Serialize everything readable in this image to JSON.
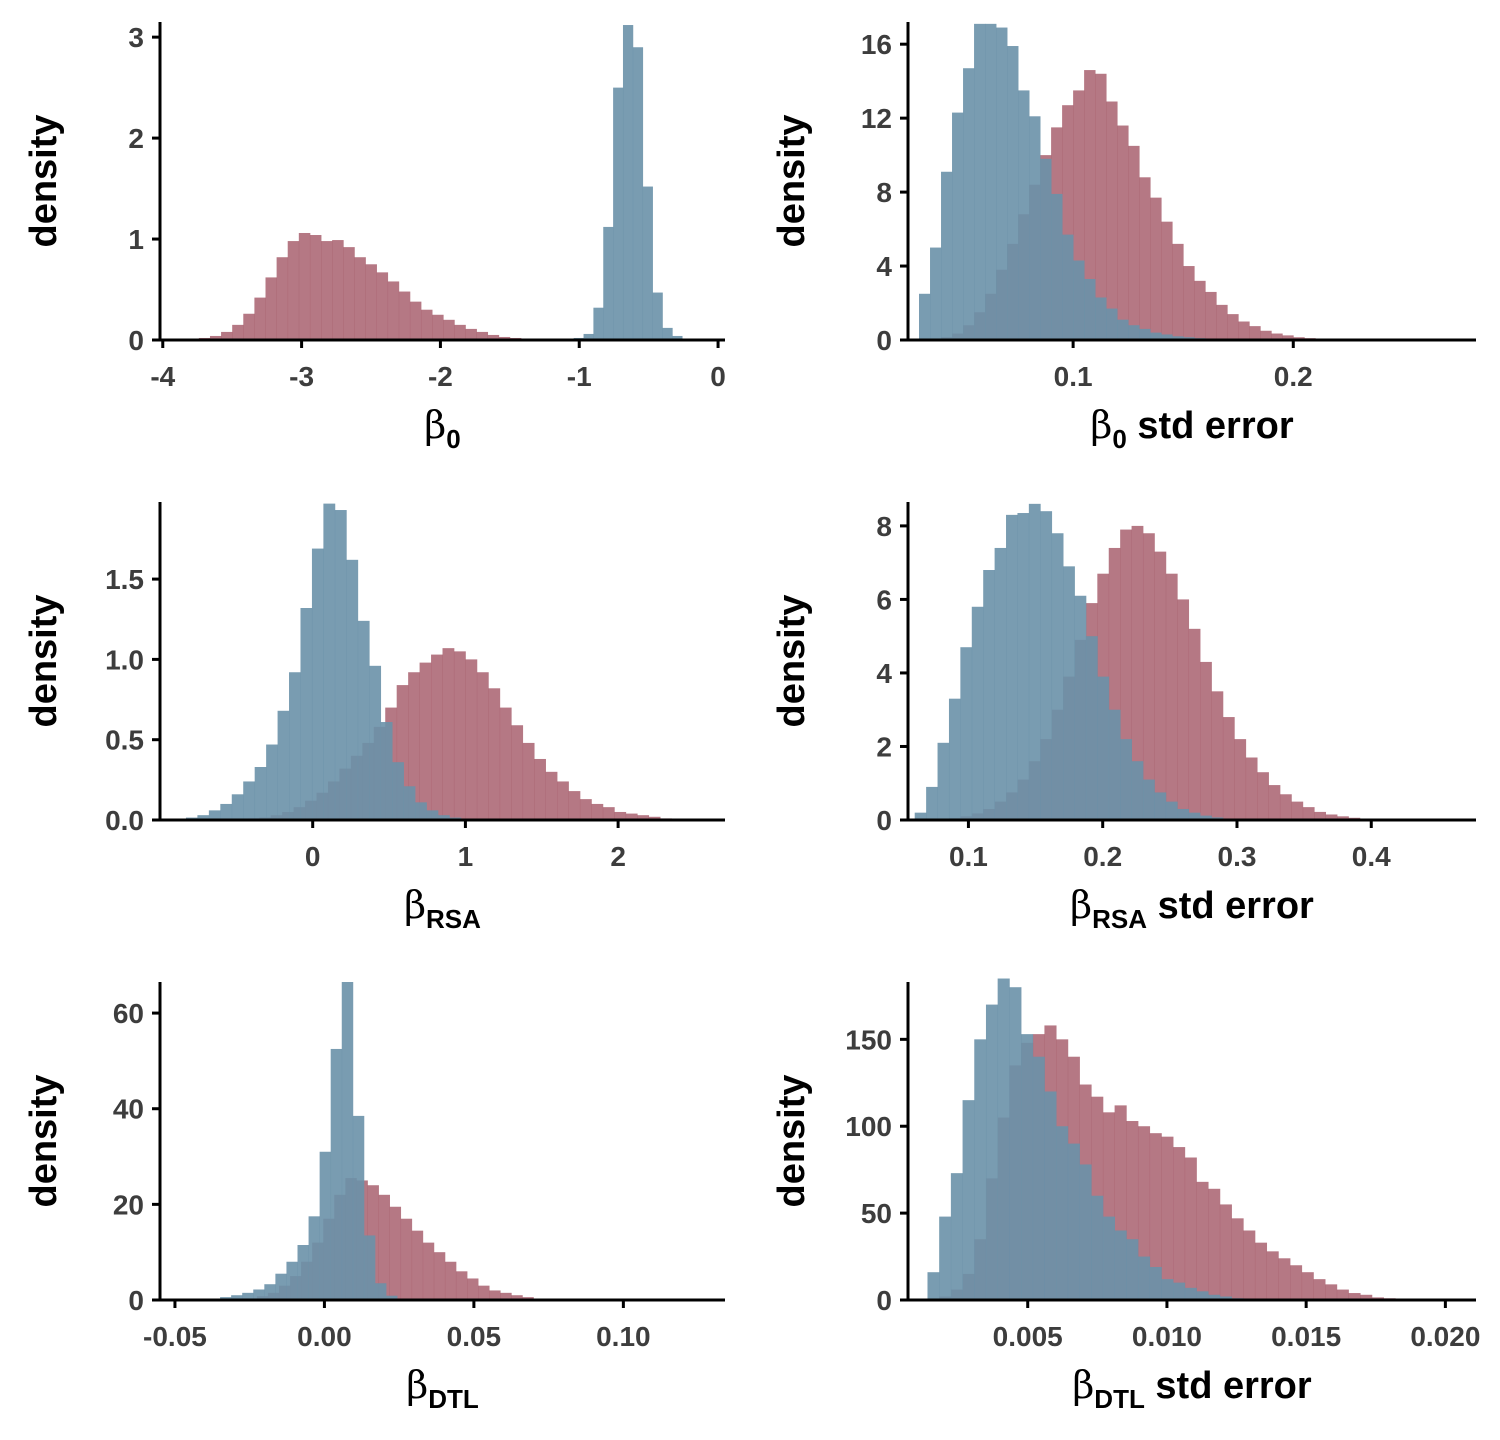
{
  "colors": {
    "red": "#A8606F",
    "blue": "#6A91A9",
    "red_opacity": 0.85,
    "blue_opacity": 0.9
  },
  "chart_data": [
    {
      "type": "histogram",
      "xlabel": {
        "symbol": "β",
        "sub": "0",
        "suffix": ""
      },
      "ylabel": "density",
      "xlim": [
        -4.02,
        0.05
      ],
      "ylim": [
        0,
        3.15
      ],
      "xticks": [
        {
          "v": -4,
          "label": "-4"
        },
        {
          "v": -3,
          "label": "-3"
        },
        {
          "v": -2,
          "label": "-2"
        },
        {
          "v": -1,
          "label": "-1"
        },
        {
          "v": 0,
          "label": "0"
        }
      ],
      "yticks": [
        {
          "v": 0,
          "label": "0"
        },
        {
          "v": 1,
          "label": "1"
        },
        {
          "v": 2,
          "label": "2"
        },
        {
          "v": 3,
          "label": "3"
        }
      ],
      "series": [
        {
          "color": "red",
          "x0": -3.98,
          "bin": 0.08,
          "values": [
            0.003,
            0.005,
            0.01,
            0.02,
            0.04,
            0.08,
            0.15,
            0.26,
            0.42,
            0.62,
            0.82,
            0.98,
            1.06,
            1.04,
            0.98,
            0.99,
            0.92,
            0.82,
            0.75,
            0.67,
            0.58,
            0.48,
            0.38,
            0.3,
            0.25,
            0.2,
            0.15,
            0.11,
            0.08,
            0.05,
            0.03,
            0.02,
            0.01,
            0.005
          ]
        },
        {
          "color": "blue",
          "x0": -1.04,
          "bin": 0.071,
          "values": [
            0.02,
            0.06,
            0.32,
            1.12,
            2.5,
            3.12,
            2.9,
            1.52,
            0.47,
            0.12,
            0.04,
            0.01
          ]
        }
      ]
    },
    {
      "type": "histogram",
      "xlabel": {
        "symbol": "β",
        "sub": "0",
        "suffix": " std error"
      },
      "ylabel": "density",
      "xlim": [
        0.025,
        0.283
      ],
      "ylim": [
        0,
        17.2
      ],
      "xticks": [
        {
          "v": 0.1,
          "label": "0.1"
        },
        {
          "v": 0.2,
          "label": "0.2"
        }
      ],
      "yticks": [
        {
          "v": 0,
          "label": "0"
        },
        {
          "v": 4,
          "label": "4"
        },
        {
          "v": 8,
          "label": "8"
        },
        {
          "v": 12,
          "label": "12"
        },
        {
          "v": 16,
          "label": "16"
        }
      ],
      "series": [
        {
          "color": "red",
          "x0": 0.03,
          "bin": 0.005,
          "values": [
            0.02,
            0.06,
            0.15,
            0.35,
            0.8,
            1.5,
            2.5,
            3.8,
            5.2,
            6.8,
            8.4,
            10.0,
            11.5,
            12.7,
            13.5,
            14.6,
            14.4,
            12.9,
            11.6,
            10.5,
            8.8,
            7.7,
            6.4,
            5.2,
            4.0,
            3.2,
            2.6,
            1.9,
            1.4,
            1.0,
            0.75,
            0.5,
            0.35,
            0.25,
            0.15,
            0.1,
            0.06,
            0.03,
            0.02
          ]
        },
        {
          "color": "blue",
          "x0": 0.03,
          "bin": 0.005,
          "values": [
            2.5,
            5.0,
            9.1,
            12.3,
            14.7,
            17.1,
            17.1,
            16.9,
            15.9,
            13.5,
            12.1,
            9.8,
            7.9,
            5.7,
            4.3,
            3.3,
            2.3,
            1.7,
            1.1,
            0.8,
            0.6,
            0.4,
            0.3,
            0.2,
            0.15,
            0.1,
            0.06,
            0.04,
            0.02
          ]
        }
      ]
    },
    {
      "type": "histogram",
      "xlabel": {
        "symbol": "β",
        "sub": "RSA",
        "suffix": ""
      },
      "ylabel": "density",
      "xlim": [
        -1.0,
        2.7
      ],
      "ylim": [
        0,
        1.98
      ],
      "xticks": [
        {
          "v": 0,
          "label": "0"
        },
        {
          "v": 1,
          "label": "1"
        },
        {
          "v": 2,
          "label": "2"
        }
      ],
      "yticks": [
        {
          "v": 0,
          "label": "0.0"
        },
        {
          "v": 0.5,
          "label": "0.5"
        },
        {
          "v": 1.0,
          "label": "1.0"
        },
        {
          "v": 1.5,
          "label": "1.5"
        }
      ],
      "series": [
        {
          "color": "red",
          "x0": -0.5,
          "bin": 0.075,
          "values": [
            0.005,
            0.01,
            0.015,
            0.03,
            0.05,
            0.08,
            0.12,
            0.17,
            0.24,
            0.32,
            0.4,
            0.48,
            0.58,
            0.7,
            0.84,
            0.92,
            0.98,
            1.03,
            1.07,
            1.05,
            1.0,
            0.92,
            0.82,
            0.7,
            0.59,
            0.48,
            0.38,
            0.3,
            0.24,
            0.18,
            0.13,
            0.1,
            0.08,
            0.05,
            0.04,
            0.03,
            0.02,
            0.01
          ]
        },
        {
          "color": "blue",
          "x0": -0.98,
          "bin": 0.075,
          "values": [
            0.004,
            0.008,
            0.015,
            0.03,
            0.06,
            0.1,
            0.16,
            0.24,
            0.33,
            0.47,
            0.68,
            0.92,
            1.32,
            1.69,
            1.97,
            1.93,
            1.62,
            1.24,
            0.96,
            0.61,
            0.36,
            0.21,
            0.11,
            0.06,
            0.03,
            0.015,
            0.008,
            0.004
          ]
        }
      ]
    },
    {
      "type": "histogram",
      "xlabel": {
        "symbol": "β",
        "sub": "RSA",
        "suffix": " std error"
      },
      "ylabel": "density",
      "xlim": [
        0.055,
        0.478
      ],
      "ylim": [
        0,
        8.65
      ],
      "xticks": [
        {
          "v": 0.1,
          "label": "0.1"
        },
        {
          "v": 0.2,
          "label": "0.2"
        },
        {
          "v": 0.3,
          "label": "0.3"
        },
        {
          "v": 0.4,
          "label": "0.4"
        }
      ],
      "yticks": [
        {
          "v": 0,
          "label": "0"
        },
        {
          "v": 2,
          "label": "2"
        },
        {
          "v": 4,
          "label": "4"
        },
        {
          "v": 6,
          "label": "6"
        },
        {
          "v": 8,
          "label": "8"
        }
      ],
      "series": [
        {
          "color": "red",
          "x0": 0.06,
          "bin": 0.0085,
          "values": [
            0.005,
            0.01,
            0.02,
            0.05,
            0.1,
            0.18,
            0.3,
            0.5,
            0.75,
            1.1,
            1.6,
            2.2,
            3.0,
            3.9,
            4.9,
            5.9,
            6.7,
            7.4,
            7.9,
            8.0,
            7.8,
            7.3,
            6.7,
            6.0,
            5.2,
            4.3,
            3.5,
            2.8,
            2.2,
            1.7,
            1.3,
            0.95,
            0.7,
            0.5,
            0.35,
            0.22,
            0.15,
            0.1,
            0.06,
            0.03
          ]
        },
        {
          "color": "blue",
          "x0": 0.06,
          "bin": 0.0085,
          "values": [
            0.2,
            0.9,
            2.1,
            3.3,
            4.7,
            5.8,
            6.8,
            7.4,
            8.3,
            8.35,
            8.6,
            8.4,
            7.8,
            6.9,
            6.1,
            5.0,
            3.9,
            3.0,
            2.2,
            1.6,
            1.1,
            0.75,
            0.5,
            0.3,
            0.2,
            0.12,
            0.07,
            0.04,
            0.02
          ]
        }
      ]
    },
    {
      "type": "histogram",
      "xlabel": {
        "symbol": "β",
        "sub": "DTL",
        "suffix": ""
      },
      "ylabel": "density",
      "xlim": [
        -0.055,
        0.134
      ],
      "ylim": [
        0,
        66.5
      ],
      "xticks": [
        {
          "v": -0.05,
          "label": "-0.05"
        },
        {
          "v": 0.0,
          "label": "0.00"
        },
        {
          "v": 0.05,
          "label": "0.05"
        },
        {
          "v": 0.1,
          "label": "0.10"
        }
      ],
      "yticks": [
        {
          "v": 0,
          "label": "0"
        },
        {
          "v": 20,
          "label": "20"
        },
        {
          "v": 40,
          "label": "40"
        },
        {
          "v": 60,
          "label": "60"
        }
      ],
      "series": [
        {
          "color": "red",
          "x0": -0.03,
          "bin": 0.0037,
          "values": [
            0.1,
            0.3,
            0.8,
            1.5,
            3.0,
            5.0,
            8.0,
            12.0,
            17.0,
            22.0,
            25.5,
            25.0,
            24.0,
            22.0,
            19.5,
            17.0,
            14.5,
            12.0,
            10.0,
            8.0,
            6.0,
            4.5,
            3.0,
            2.0,
            1.5,
            1.0,
            0.6,
            0.3,
            0.1
          ]
        },
        {
          "color": "blue",
          "x0": -0.046,
          "bin": 0.0037,
          "values": [
            0.1,
            0.2,
            0.3,
            0.6,
            1.0,
            1.5,
            2.2,
            3.3,
            5.5,
            8.0,
            11.5,
            17.5,
            31.0,
            52.5,
            66.5,
            38.5,
            13.5,
            3.5,
            0.9,
            0.25,
            0.1
          ]
        }
      ]
    },
    {
      "type": "histogram",
      "xlabel": {
        "symbol": "β",
        "sub": "DTL",
        "suffix": " std error"
      },
      "ylabel": "density",
      "xlim": [
        0.0007,
        0.0211
      ],
      "ylim": [
        0,
        183
      ],
      "xticks": [
        {
          "v": 0.005,
          "label": "0.005"
        },
        {
          "v": 0.01,
          "label": "0.010"
        },
        {
          "v": 0.015,
          "label": "0.015"
        },
        {
          "v": 0.02,
          "label": "0.020"
        }
      ],
      "yticks": [
        {
          "v": 0,
          "label": "0"
        },
        {
          "v": 50,
          "label": "50"
        },
        {
          "v": 100,
          "label": "100"
        },
        {
          "v": 150,
          "label": "150"
        }
      ],
      "series": [
        {
          "color": "red",
          "x0": 0.0014,
          "bin": 0.00042,
          "values": [
            0.5,
            2,
            6,
            15,
            35,
            70,
            105,
            135,
            148,
            153,
            158,
            150,
            140,
            124,
            117,
            108,
            112,
            103,
            100,
            96,
            94,
            88,
            82,
            68,
            64,
            55,
            47,
            40,
            33,
            28,
            24,
            20,
            16,
            12,
            9,
            6,
            4,
            3,
            1.5,
            1,
            0.5
          ]
        },
        {
          "color": "blue",
          "x0": 0.0014,
          "bin": 0.00042,
          "values": [
            16,
            48,
            73,
            115,
            150,
            170,
            185,
            180,
            153,
            140,
            120,
            100,
            90,
            78,
            60,
            48,
            40,
            35,
            25,
            19,
            12,
            10,
            7,
            5,
            3,
            2,
            1,
            0.5
          ]
        }
      ]
    }
  ]
}
